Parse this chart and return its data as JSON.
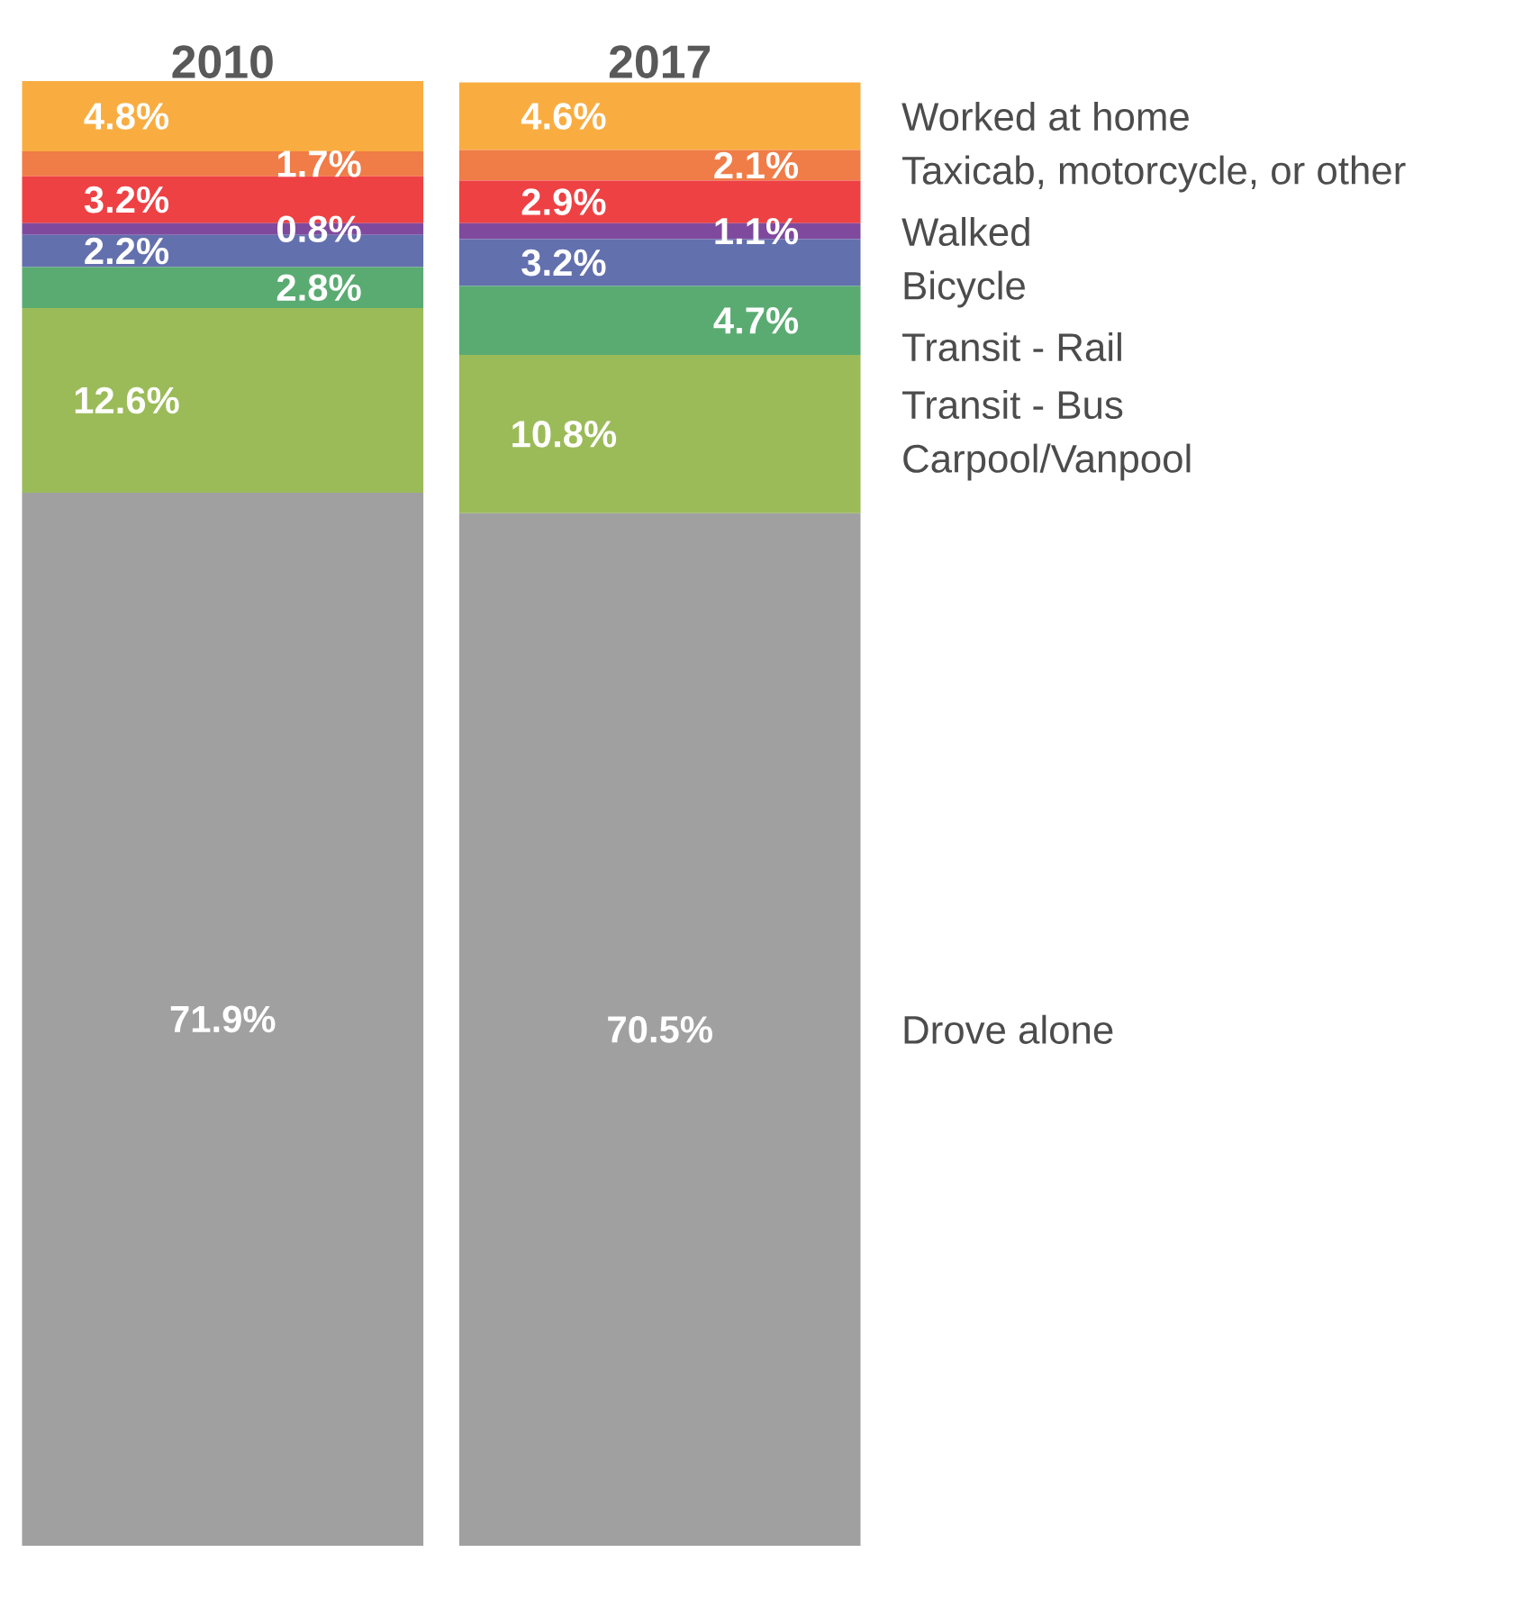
{
  "chart_data": {
    "type": "bar",
    "stacked": true,
    "categories": [
      "2010",
      "2017"
    ],
    "series": [
      {
        "name": "Drove alone",
        "color": "#a0a0a0",
        "values": [
          71.9,
          70.5
        ],
        "value_labels": [
          "71.9%",
          "70.5%"
        ]
      },
      {
        "name": "Carpool/Vanpool",
        "color": "#9bbb59",
        "values": [
          12.6,
          10.8
        ],
        "value_labels": [
          "12.6%",
          "10.8%"
        ]
      },
      {
        "name": "Transit - Bus",
        "color": "#5aab72",
        "values": [
          2.8,
          4.7
        ],
        "value_labels": [
          "2.8%",
          "4.7%"
        ]
      },
      {
        "name": "Transit - Rail",
        "color": "#6370ae",
        "values": [
          2.2,
          3.2
        ],
        "value_labels": [
          "2.2%",
          "3.2%"
        ]
      },
      {
        "name": "Bicycle",
        "color": "#7f4a9e",
        "values": [
          0.8,
          1.1
        ],
        "value_labels": [
          "0.8%",
          "1.1%"
        ]
      },
      {
        "name": "Walked",
        "color": "#ee4144",
        "values": [
          3.2,
          2.9
        ],
        "value_labels": [
          "3.2%",
          "2.9%"
        ]
      },
      {
        "name": "Taxicab, motorcycle, or other",
        "color": "#f07c47",
        "values": [
          1.7,
          2.1
        ],
        "value_labels": [
          "1.7%",
          "2.1%"
        ]
      },
      {
        "name": "Worked at home",
        "color": "#f9ad41",
        "values": [
          4.8,
          4.6
        ],
        "value_labels": [
          "4.8%",
          "4.6%"
        ]
      }
    ]
  }
}
